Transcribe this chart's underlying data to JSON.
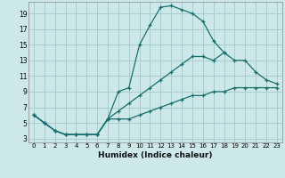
{
  "xlabel": "Humidex (Indice chaleur)",
  "bg_color": "#cce8e8",
  "grid_color": "#aacccc",
  "line_color": "#1a6e6e",
  "xlim": [
    -0.5,
    23.5
  ],
  "ylim": [
    2.5,
    20.5
  ],
  "xticks": [
    0,
    1,
    2,
    3,
    4,
    5,
    6,
    7,
    8,
    9,
    10,
    11,
    12,
    13,
    14,
    15,
    16,
    17,
    18,
    19,
    20,
    21,
    22,
    23
  ],
  "yticks": [
    3,
    5,
    7,
    9,
    11,
    13,
    15,
    17,
    19
  ],
  "line1_x": [
    0,
    1,
    2,
    3,
    4,
    5,
    6,
    7,
    8,
    9,
    10,
    11,
    12,
    13,
    14,
    15,
    16,
    17,
    18
  ],
  "line1_y": [
    6,
    5,
    4,
    3.5,
    3.5,
    3.5,
    3.5,
    5.5,
    9,
    9.5,
    15,
    17.5,
    19.8,
    20,
    19.5,
    19,
    18,
    15.5,
    14
  ],
  "line2_x": [
    0,
    1,
    2,
    3,
    4,
    5,
    6,
    7,
    8,
    9,
    10,
    11,
    12,
    13,
    14,
    15,
    16,
    17,
    18,
    19,
    20,
    21,
    22,
    23
  ],
  "line2_y": [
    6,
    5,
    4,
    3.5,
    3.5,
    3.5,
    3.5,
    5.5,
    6.5,
    7.5,
    8.5,
    9.5,
    10.5,
    11.5,
    12.5,
    13.5,
    13.5,
    13,
    14,
    13,
    13,
    11.5,
    10.5,
    10
  ],
  "line3_x": [
    0,
    1,
    2,
    3,
    4,
    5,
    6,
    7,
    8,
    9,
    10,
    11,
    12,
    13,
    14,
    15,
    16,
    17,
    18,
    19,
    20,
    21,
    22,
    23
  ],
  "line3_y": [
    6,
    5,
    4,
    3.5,
    3.5,
    3.5,
    3.5,
    5.5,
    5.5,
    5.5,
    6,
    6.5,
    7,
    7.5,
    8,
    8.5,
    8.5,
    9,
    9,
    9.5,
    9.5,
    9.5,
    9.5,
    9.5
  ]
}
